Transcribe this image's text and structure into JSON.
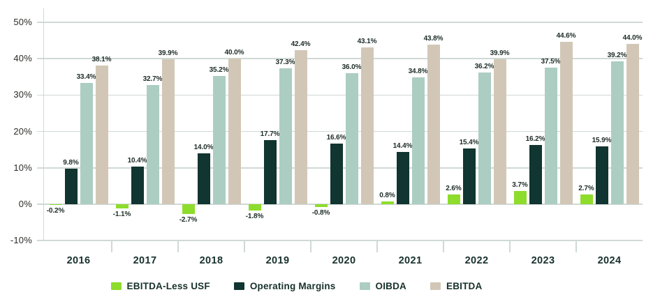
{
  "chart_data": {
    "type": "bar",
    "title": "",
    "categories": [
      "2016",
      "2017",
      "2018",
      "2019",
      "2020",
      "2021",
      "2022",
      "2023",
      "2024"
    ],
    "series": [
      {
        "name": "EBITDA-Less USF",
        "color": "#8edc2c",
        "values": [
          -0.2,
          -1.1,
          -2.7,
          -1.8,
          -0.8,
          0.8,
          2.6,
          3.7,
          2.7
        ]
      },
      {
        "name": "Operating Margins",
        "color": "#113530",
        "values": [
          9.8,
          10.4,
          14.0,
          17.7,
          16.6,
          14.4,
          15.4,
          16.2,
          15.9
        ]
      },
      {
        "name": "OIBDA",
        "color": "#accdc2",
        "values": [
          33.4,
          32.7,
          35.2,
          37.3,
          36.0,
          34.8,
          36.2,
          37.5,
          39.2
        ]
      },
      {
        "name": "EBITDA",
        "color": "#d2c7b6",
        "values": [
          38.1,
          39.9,
          40.0,
          42.4,
          43.1,
          43.8,
          39.9,
          44.6,
          44.0
        ]
      }
    ],
    "data_label_format": "one_decimal_percent",
    "xlabel": "",
    "ylabel": "",
    "y_axis": {
      "ticks": [
        50,
        40,
        30,
        20,
        10,
        0,
        -10
      ],
      "tick_labels": [
        "50%",
        "40%",
        "30%",
        "20%",
        "10%",
        "0%",
        "-10%"
      ],
      "ylim": [
        -10,
        50
      ]
    },
    "grid": "horizontal",
    "legend_position": "bottom",
    "colors": {
      "axis_line": "#cfd9d5",
      "gridline": "#cfd9d5",
      "value_label_text": "#1c2b26",
      "axis_label_text": "#2b2b28",
      "category_label_text": "#17312b",
      "background": "#ffffff"
    }
  }
}
